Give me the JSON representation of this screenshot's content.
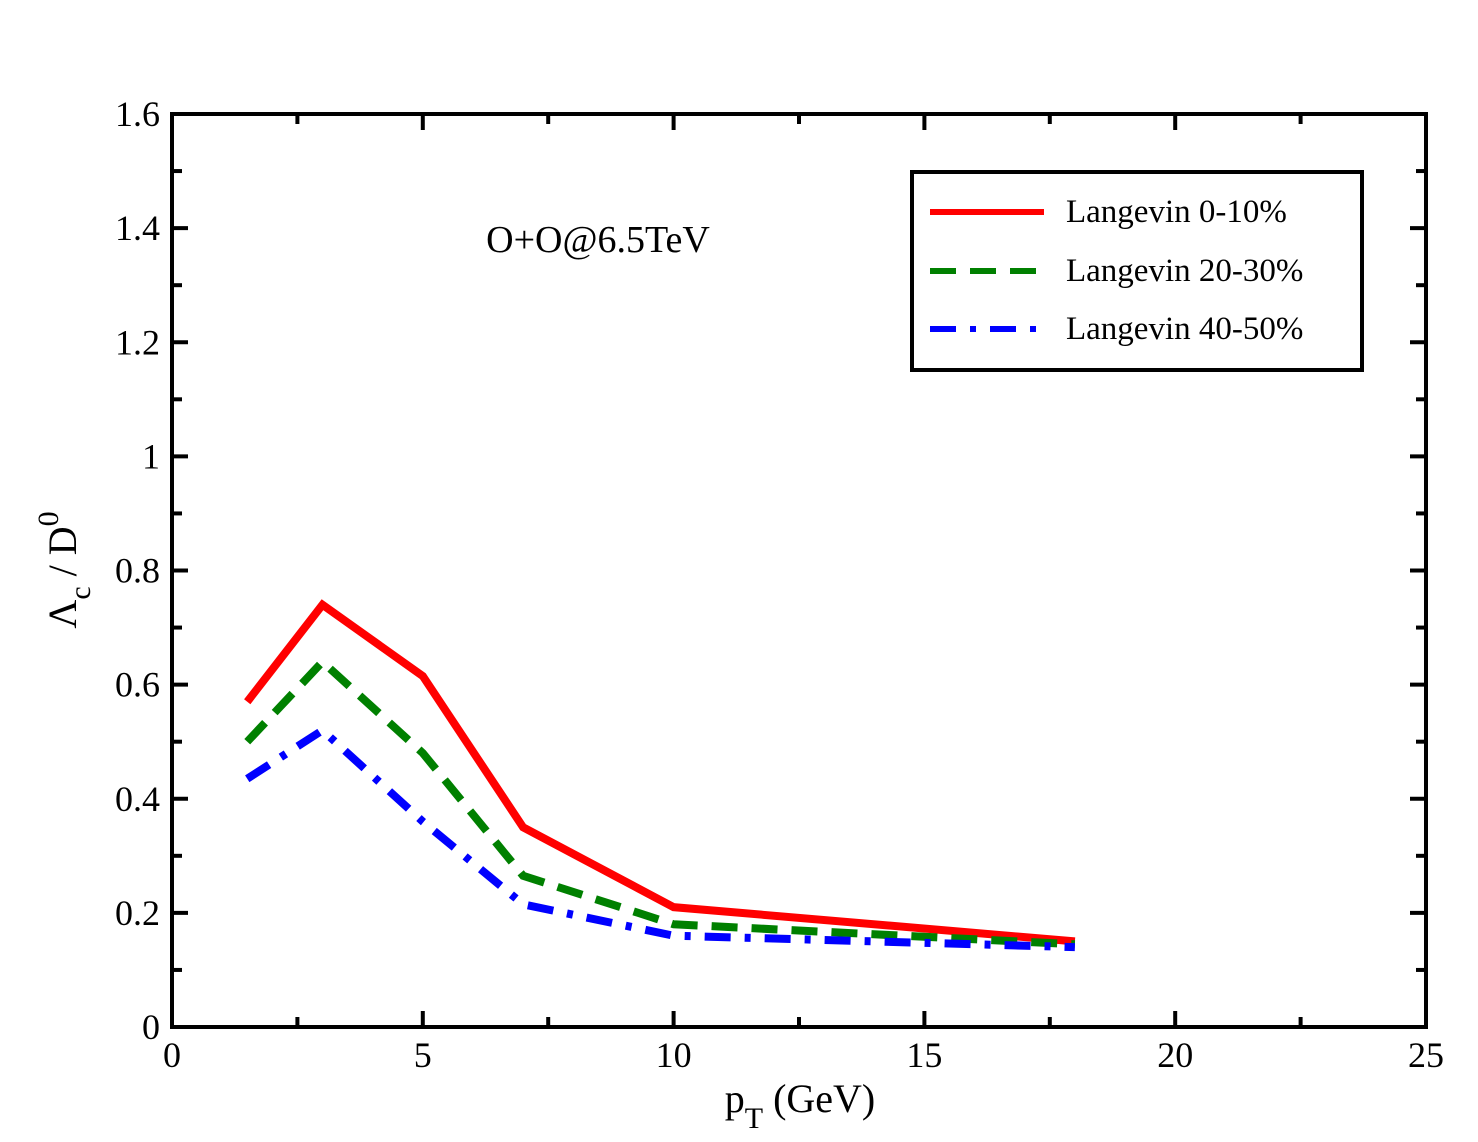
{
  "chart_data": {
    "type": "line",
    "title": "",
    "annotation": "O+O@6.5TeV",
    "xlabel": {
      "main": "p",
      "sub": "T",
      "rest": " (GeV)"
    },
    "ylabel": {
      "lambda": "Λ",
      "lambda_sub": "c",
      "slash": " / D",
      "d_sup": "0"
    },
    "xlim": [
      0,
      25
    ],
    "ylim": [
      0,
      1.6
    ],
    "xticks": [
      0,
      5,
      10,
      15,
      20,
      25
    ],
    "xtick_labels": [
      "0",
      "5",
      "10",
      "15",
      "20",
      "25"
    ],
    "yticks": [
      0,
      0.2,
      0.4,
      0.6,
      0.8,
      1.0,
      1.2,
      1.4,
      1.6
    ],
    "ytick_labels": [
      "0",
      "0.2",
      "0.4",
      "0.6",
      "0.8",
      "1",
      "1.2",
      "1.4",
      "1.6"
    ],
    "grid": false,
    "legend_position": "top-right",
    "series": [
      {
        "name": "Langevin 0-10%",
        "color": "#ff0000",
        "style": "solid",
        "x": [
          1.5,
          3,
          5,
          7,
          10,
          18
        ],
        "y": [
          0.57,
          0.74,
          0.615,
          0.35,
          0.21,
          0.15
        ]
      },
      {
        "name": "Langevin 20-30%",
        "color": "#008000",
        "style": "dashed",
        "x": [
          1.5,
          3,
          5,
          7,
          10,
          18
        ],
        "y": [
          0.5,
          0.64,
          0.48,
          0.265,
          0.18,
          0.145
        ]
      },
      {
        "name": "Langevin 40-50%",
        "color": "#0000ff",
        "style": "dashdot",
        "x": [
          1.5,
          3,
          5,
          7,
          10,
          18
        ],
        "y": [
          0.435,
          0.52,
          0.36,
          0.215,
          0.16,
          0.14
        ]
      }
    ]
  }
}
